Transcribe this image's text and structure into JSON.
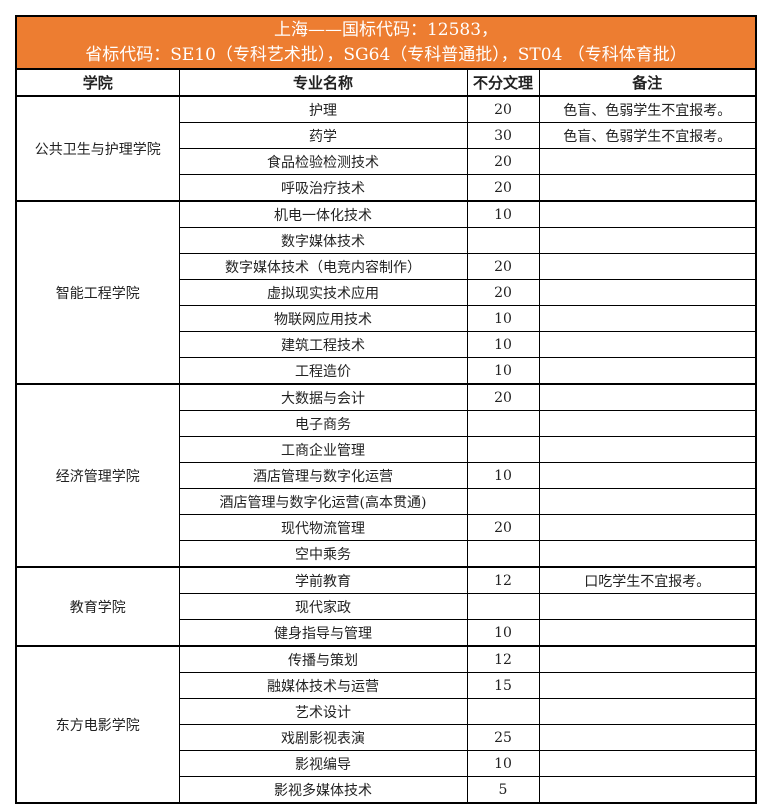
{
  "title": {
    "line1": "上海——国标代码：12583，",
    "line2": "省标代码：SE10（专科艺术批），SG64（专科普通批），ST04 （专科体育批）"
  },
  "columns": [
    "学院",
    "专业名称",
    "不分文理",
    "备注"
  ],
  "groups": [
    {
      "college": "公共卫生与护理学院",
      "rows": [
        [
          "护理",
          "20",
          "色盲、色弱学生不宜报考。"
        ],
        [
          "药学",
          "30",
          "色盲、色弱学生不宜报考。"
        ],
        [
          "食品检验检测技术",
          "20",
          ""
        ],
        [
          "呼吸治疗技术",
          "20",
          ""
        ]
      ]
    },
    {
      "college": "智能工程学院",
      "rows": [
        [
          "机电一体化技术",
          "10",
          ""
        ],
        [
          "数字媒体技术",
          "",
          ""
        ],
        [
          "数字媒体技术（电竞内容制作）",
          "20",
          ""
        ],
        [
          "虚拟现实技术应用",
          "20",
          ""
        ],
        [
          "物联网应用技术",
          "10",
          ""
        ],
        [
          "建筑工程技术",
          "10",
          ""
        ],
        [
          "工程造价",
          "10",
          ""
        ]
      ]
    },
    {
      "college": "经济管理学院",
      "rows": [
        [
          "大数据与会计",
          "20",
          ""
        ],
        [
          "电子商务",
          "",
          ""
        ],
        [
          "工商企业管理",
          "",
          ""
        ],
        [
          "酒店管理与数字化运营",
          "10",
          ""
        ],
        [
          "酒店管理与数字化运营(高本贯通)",
          "",
          ""
        ],
        [
          "现代物流管理",
          "20",
          ""
        ],
        [
          "空中乘务",
          "",
          ""
        ]
      ]
    },
    {
      "college": "教育学院",
      "rows": [
        [
          "学前教育",
          "12",
          "口吃学生不宜报考。"
        ],
        [
          "现代家政",
          "",
          ""
        ],
        [
          "健身指导与管理",
          "10",
          ""
        ]
      ]
    },
    {
      "college": "东方电影学院",
      "rows": [
        [
          "传播与策划",
          "12",
          ""
        ],
        [
          "融媒体技术与运营",
          "15",
          ""
        ],
        [
          "艺术设计",
          "",
          ""
        ],
        [
          "戏剧影视表演",
          "25",
          ""
        ],
        [
          "影视编导",
          "10",
          ""
        ],
        [
          "影视多媒体技术",
          "5",
          ""
        ]
      ]
    }
  ],
  "colors": {
    "header_bg": "#ed7d31",
    "header_text": "#ffffff"
  }
}
